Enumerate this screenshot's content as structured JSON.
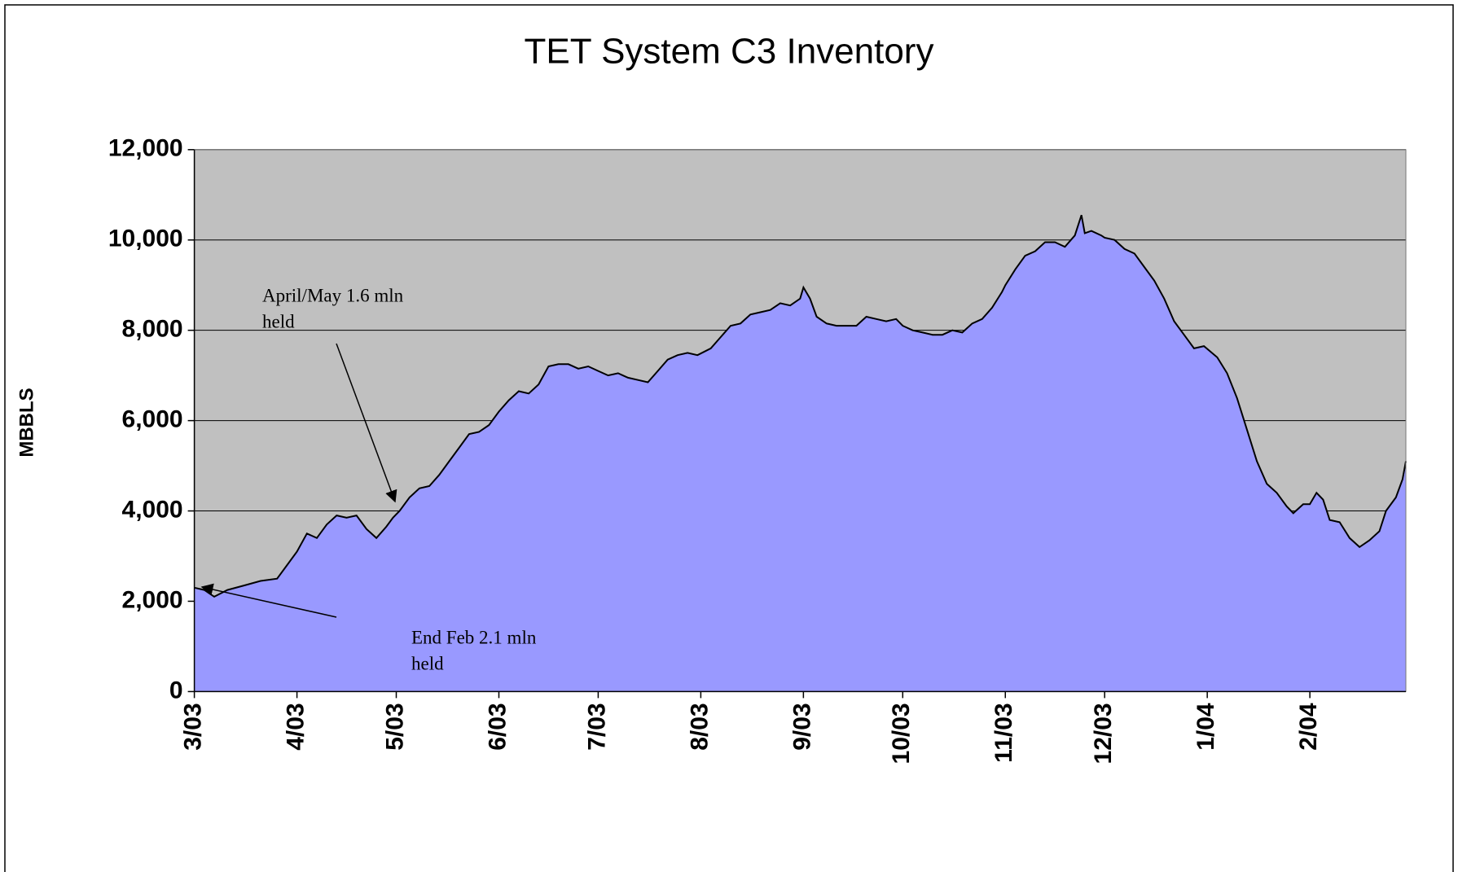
{
  "chart_data": {
    "type": "area",
    "title": "TET System C3 Inventory",
    "y_label": "MBBLS",
    "color": "#9999ff",
    "line_color": "#000000",
    "plot_background": "#c0c0c0",
    "grid": true,
    "xlim": [
      0,
      366
    ],
    "xticks": [
      {
        "value": 0,
        "label": "3/03"
      },
      {
        "value": 31,
        "label": "4/03"
      },
      {
        "value": 61,
        "label": "5/03"
      },
      {
        "value": 92,
        "label": "6/03"
      },
      {
        "value": 122,
        "label": "7/03"
      },
      {
        "value": 153,
        "label": "8/03"
      },
      {
        "value": 184,
        "label": "9/03"
      },
      {
        "value": 214,
        "label": "10/03"
      },
      {
        "value": 245,
        "label": "11/03"
      },
      {
        "value": 275,
        "label": "12/03"
      },
      {
        "value": 306,
        "label": "1/04"
      },
      {
        "value": 337,
        "label": "2/04"
      }
    ],
    "ylim": [
      0,
      12000
    ],
    "yticks": [
      {
        "value": 0,
        "label": "0"
      },
      {
        "value": 2000,
        "label": "2,000"
      },
      {
        "value": 4000,
        "label": "4,000"
      },
      {
        "value": 6000,
        "label": "6,000"
      },
      {
        "value": 8000,
        "label": "8,000"
      },
      {
        "value": 10000,
        "label": "10,000"
      },
      {
        "value": 12000,
        "label": "12,000"
      }
    ],
    "x": [
      0,
      3,
      6,
      10,
      15,
      20,
      25,
      28,
      31,
      34,
      37,
      40,
      43,
      46,
      49,
      52,
      55,
      58,
      60,
      62,
      65,
      68,
      71,
      74,
      77,
      80,
      83,
      86,
      89,
      92,
      95,
      98,
      101,
      104,
      107,
      110,
      113,
      116,
      119,
      122,
      125,
      128,
      131,
      134,
      137,
      140,
      143,
      146,
      149,
      152,
      156,
      159,
      162,
      165,
      168,
      171,
      174,
      177,
      180,
      183,
      184,
      186,
      188,
      191,
      194,
      197,
      200,
      203,
      206,
      209,
      212,
      214,
      217,
      220,
      223,
      226,
      229,
      232,
      235,
      238,
      241,
      244,
      245,
      248,
      251,
      254,
      257,
      260,
      263,
      266,
      268,
      269,
      271,
      274,
      275,
      278,
      281,
      284,
      287,
      290,
      293,
      296,
      299,
      302,
      305,
      309,
      312,
      315,
      318,
      321,
      324,
      327,
      330,
      332,
      335,
      337,
      339,
      341,
      343,
      346,
      349,
      352,
      355,
      358,
      360,
      363,
      365,
      366
    ],
    "values": [
      2300,
      2250,
      2100,
      2250,
      2350,
      2450,
      2500,
      2800,
      3100,
      3500,
      3400,
      3700,
      3900,
      3850,
      3900,
      3600,
      3400,
      3650,
      3850,
      4000,
      4300,
      4500,
      4550,
      4800,
      5100,
      5400,
      5700,
      5750,
      5900,
      6200,
      6450,
      6650,
      6600,
      6800,
      7200,
      7250,
      7250,
      7150,
      7200,
      7100,
      7000,
      7050,
      6950,
      6900,
      6850,
      7100,
      7350,
      7450,
      7500,
      7450,
      7600,
      7850,
      8100,
      8150,
      8350,
      8400,
      8450,
      8600,
      8550,
      8700,
      8950,
      8700,
      8300,
      8150,
      8100,
      8100,
      8100,
      8300,
      8250,
      8200,
      8250,
      8100,
      8000,
      7950,
      7900,
      7900,
      8000,
      7950,
      8150,
      8250,
      8500,
      8850,
      9000,
      9350,
      9650,
      9750,
      9950,
      9950,
      9850,
      10100,
      10550,
      10150,
      10200,
      10100,
      10050,
      10000,
      9800,
      9700,
      9400,
      9100,
      8700,
      8200,
      7900,
      7600,
      7650,
      7400,
      7050,
      6500,
      5800,
      5100,
      4600,
      4400,
      4100,
      3950,
      4150,
      4150,
      4400,
      4250,
      3800,
      3750,
      3400,
      3200,
      3350,
      3550,
      4000,
      4300,
      4700,
      5100
    ],
    "annotations": [
      {
        "lines": [
          "April/May 1.6 mln",
          "held"
        ]
      },
      {
        "lines": [
          "End Feb 2.1 mln",
          "held"
        ]
      }
    ]
  }
}
